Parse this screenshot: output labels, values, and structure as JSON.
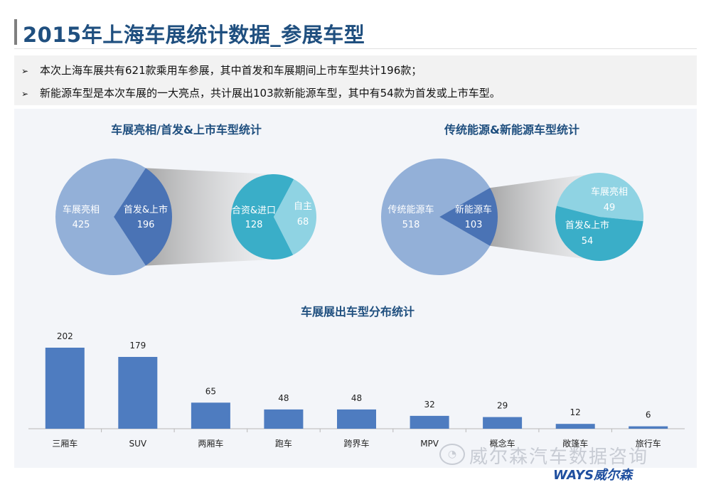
{
  "header": {
    "title": "2015年上海车展统计数据_参展车型"
  },
  "bullets": [
    {
      "arrow": "➢",
      "text": "本次上海车展共有621款乘用车参展，其中首发和车展期间上市车型共计196款；"
    },
    {
      "arrow": "➢",
      "text": "新能源车型是本次车展的一大亮点，共计展出103款新能源车型，其中有54款为首发或上市车型。"
    }
  ],
  "watermark": {
    "text": "威尔森汽车数据咨询",
    "icon": "wechat-icon",
    "logo": "WAYS威尔森"
  },
  "colors": {
    "title": "#1f4f7f",
    "pie_light": "#93b0d8",
    "pie_dark": "#4a73b5",
    "bar": "#4e7cc0",
    "sub_teal": "#3aaec8",
    "sub_light": "#8fd3e3"
  },
  "chart_data": [
    {
      "type": "pie",
      "title": "车展亮相/首发&上市车型统计",
      "slices": [
        {
          "label": "车展亮相",
          "value": 425
        },
        {
          "label": "首发&上市",
          "value": 196
        }
      ],
      "breakdown_of": "首发&上市",
      "sub_slices": [
        {
          "label": "合资&进口",
          "value": 128
        },
        {
          "label": "自主",
          "value": 68
        }
      ]
    },
    {
      "type": "pie",
      "title": "传统能源&新能源车型统计",
      "slices": [
        {
          "label": "传统能源车",
          "value": 518
        },
        {
          "label": "新能源车",
          "value": 103
        }
      ],
      "breakdown_of": "新能源车",
      "sub_slices": [
        {
          "label": "车展亮相",
          "value": 49
        },
        {
          "label": "首发&上市",
          "value": 54
        }
      ]
    },
    {
      "type": "bar",
      "title": "车展展出车型分布统计",
      "categories": [
        "三厢车",
        "SUV",
        "两厢车",
        "跑车",
        "跨界车",
        "MPV",
        "概念车",
        "敞篷车",
        "旅行车"
      ],
      "values": [
        202,
        179,
        65,
        48,
        48,
        32,
        29,
        12,
        6
      ],
      "ylim": [
        0,
        202
      ],
      "grid": false,
      "data_labels": true
    }
  ]
}
